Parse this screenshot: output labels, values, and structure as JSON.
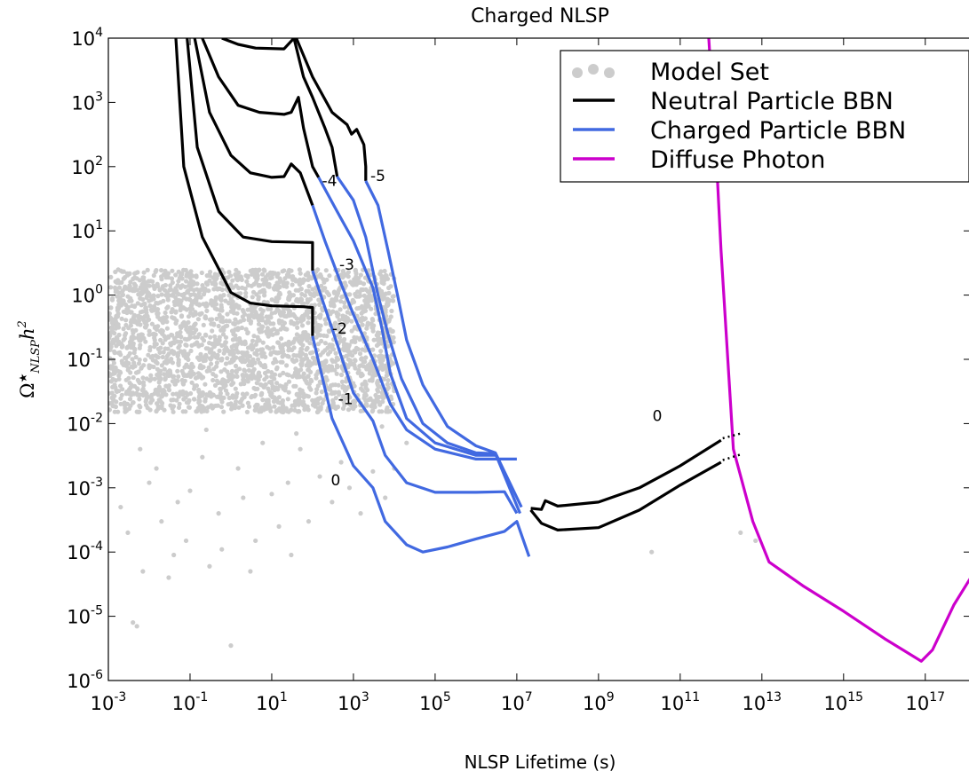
{
  "chart_data": {
    "type": "line",
    "title": "Charged NLSP",
    "xlabel": "NLSP Lifetime (s)",
    "ylabel": "Ω★NLSP h2",
    "ylabel_parts": {
      "omega": "Ω",
      "star": "★",
      "sub": "NLSP",
      "h": "h",
      "sup": "2"
    },
    "x_scale": "log",
    "y_scale": "log",
    "xlim": [
      0.001,
      1.3e+18
    ],
    "ylim": [
      1e-06,
      10000.0
    ],
    "x_ticks": [
      {
        "base": "10",
        "exp": "-3",
        "value": 0.001
      },
      {
        "base": "10",
        "exp": "-1",
        "value": 0.1
      },
      {
        "base": "10",
        "exp": "1",
        "value": 10
      },
      {
        "base": "10",
        "exp": "3",
        "value": 1000
      },
      {
        "base": "10",
        "exp": "5",
        "value": 100000.0
      },
      {
        "base": "10",
        "exp": "7",
        "value": 10000000.0
      },
      {
        "base": "10",
        "exp": "9",
        "value": 1000000000.0
      },
      {
        "base": "10",
        "exp": "11",
        "value": 100000000000.0
      },
      {
        "base": "10",
        "exp": "13",
        "value": 10000000000000.0
      },
      {
        "base": "10",
        "exp": "15",
        "value": 1000000000000000.0
      },
      {
        "base": "10",
        "exp": "17",
        "value": 1e+17
      }
    ],
    "y_ticks": [
      {
        "base": "10",
        "exp": "-6",
        "value": 1e-06
      },
      {
        "base": "10",
        "exp": "-5",
        "value": 1e-05
      },
      {
        "base": "10",
        "exp": "-4",
        "value": 0.0001
      },
      {
        "base": "10",
        "exp": "-3",
        "value": 0.001
      },
      {
        "base": "10",
        "exp": "-2",
        "value": 0.01
      },
      {
        "base": "10",
        "exp": "-1",
        "value": 0.1
      },
      {
        "base": "10",
        "exp": "0",
        "value": 1
      },
      {
        "base": "10",
        "exp": "1",
        "value": 10
      },
      {
        "base": "10",
        "exp": "2",
        "value": 100
      },
      {
        "base": "10",
        "exp": "3",
        "value": 1000
      },
      {
        "base": "10",
        "exp": "4",
        "value": 10000
      }
    ],
    "grid": false,
    "legend": {
      "position": "top-right",
      "entries": [
        {
          "label": "Model Set",
          "color": "#cccccc",
          "style": "dots"
        },
        {
          "label": "Neutral Particle BBN",
          "color": "#000000",
          "style": "line"
        },
        {
          "label": "Charged Particle BBN",
          "color": "#4169e1",
          "style": "line"
        },
        {
          "label": "Diffuse Photon",
          "color": "#cc00cc",
          "style": "line"
        }
      ]
    },
    "scatter_cloud": {
      "color": "#cccccc",
      "dense_region": {
        "x_range": [
          0.001,
          10000
        ],
        "y_range": [
          0.015,
          2.5
        ]
      },
      "sparse_points": [
        [
          0.002,
          0.0005
        ],
        [
          0.003,
          0.0002
        ],
        [
          0.004,
          8e-06
        ],
        [
          0.005,
          7e-06
        ],
        [
          0.007,
          5e-05
        ],
        [
          0.01,
          0.0012
        ],
        [
          0.02,
          0.0003
        ],
        [
          0.03,
          4e-05
        ],
        [
          0.05,
          0.0006
        ],
        [
          0.08,
          0.00015
        ],
        [
          0.1,
          0.0009
        ],
        [
          0.2,
          0.003
        ],
        [
          0.3,
          6e-05
        ],
        [
          0.5,
          0.0004
        ],
        [
          1,
          3.5e-06
        ],
        [
          1.5,
          0.002
        ],
        [
          2,
          0.0007
        ],
        [
          4,
          0.00015
        ],
        [
          6,
          0.005
        ],
        [
          10,
          0.0008
        ],
        [
          15,
          0.00025
        ],
        [
          25,
          0.0012
        ],
        [
          50,
          0.004
        ],
        [
          80,
          0.0003
        ],
        [
          150,
          0.0015
        ],
        [
          300,
          0.0006
        ],
        [
          500,
          0.0025
        ],
        [
          800,
          0.001
        ],
        [
          1500,
          0.0004
        ],
        [
          3000,
          0.0018
        ],
        [
          6000,
          0.0007
        ],
        [
          0.015,
          0.002
        ],
        [
          0.04,
          9e-05
        ],
        [
          0.6,
          0.00011
        ],
        [
          3,
          5e-05
        ],
        [
          30,
          9e-05
        ],
        [
          20000000000.0,
          0.0001
        ],
        [
          3000000000000.0,
          0.0002
        ],
        [
          7000000000000.0,
          0.00015
        ],
        [
          10000.0,
          0.002
        ],
        [
          20000.0,
          0.005
        ],
        [
          5000.0,
          0.009
        ],
        [
          0.25,
          0.008
        ],
        [
          40,
          0.007
        ],
        [
          0.006,
          0.004
        ]
      ]
    },
    "series": [
      {
        "color": "#000000",
        "points": [
          [
            0.045,
            10000.0
          ],
          [
            0.07,
            100
          ],
          [
            0.2,
            8
          ],
          [
            1,
            1.1
          ],
          [
            3,
            0.75
          ],
          [
            10,
            0.68
          ],
          [
            60,
            0.66
          ],
          [
            100,
            0.64
          ],
          [
            100,
            0.23
          ]
        ]
      },
      {
        "color": "#000000",
        "points": [
          [
            0.085,
            10000.0
          ],
          [
            0.15,
            200
          ],
          [
            0.5,
            20
          ],
          [
            2,
            8
          ],
          [
            10,
            6.8
          ],
          [
            100,
            6.6
          ],
          [
            100,
            2.4
          ]
        ]
      },
      {
        "color": "#000000",
        "points": [
          [
            0.13,
            10000.0
          ],
          [
            0.3,
            700
          ],
          [
            1,
            150
          ],
          [
            3,
            80
          ],
          [
            10,
            68
          ],
          [
            20,
            70
          ],
          [
            30,
            110
          ],
          [
            50,
            80
          ],
          [
            100,
            25
          ]
        ]
      },
      {
        "color": "#000000",
        "points": [
          [
            0.2,
            10000.0
          ],
          [
            0.5,
            2500
          ],
          [
            1.5,
            900
          ],
          [
            5,
            700
          ],
          [
            20,
            650
          ],
          [
            30,
            700
          ],
          [
            45,
            1200
          ],
          [
            60,
            400
          ],
          [
            100,
            100
          ],
          [
            140,
            68
          ]
        ]
      },
      {
        "color": "#000000",
        "points": [
          [
            0.6,
            10000.0
          ],
          [
            1.5,
            8000
          ],
          [
            4,
            7000
          ],
          [
            20,
            6800
          ],
          [
            35,
            10000.0
          ],
          [
            60,
            2500
          ],
          [
            100,
            1200
          ],
          [
            200,
            400
          ],
          [
            300,
            200
          ],
          [
            400,
            70
          ]
        ]
      },
      {
        "color": "#000000",
        "points": [
          [
            40,
            10000.0
          ],
          [
            100,
            2500
          ],
          [
            300,
            700
          ],
          [
            700,
            450
          ],
          [
            900,
            320
          ],
          [
            1200,
            380
          ],
          [
            1800,
            220
          ],
          [
            2000,
            100
          ],
          [
            2000,
            60
          ]
        ]
      },
      {
        "color": "#000000",
        "points": [
          [
            22000000.0,
            0.00048
          ],
          [
            40000000.0,
            0.00046
          ],
          [
            50000000.0,
            0.00063
          ],
          [
            100000000.0,
            0.00052
          ],
          [
            1000000000.0,
            0.0006
          ],
          [
            10000000000.0,
            0.001
          ],
          [
            100000000000.0,
            0.0022
          ],
          [
            1000000000000.0,
            0.0055
          ]
        ]
      },
      {
        "color": "#000000",
        "points": [
          [
            22000000.0,
            0.00045
          ],
          [
            40000000.0,
            0.00028
          ],
          [
            100000000.0,
            0.00022
          ],
          [
            1000000000.0,
            0.00024
          ],
          [
            10000000000.0,
            0.00045
          ],
          [
            100000000000.0,
            0.0011
          ],
          [
            1000000000000.0,
            0.0025
          ]
        ]
      },
      {
        "color": "#4169e1",
        "points": [
          [
            100,
            0.23
          ],
          [
            300,
            0.012
          ],
          [
            1000,
            0.0022
          ],
          [
            3000,
            0.001
          ],
          [
            6000,
            0.0003
          ],
          [
            20000.0,
            0.00013
          ],
          [
            50000.0,
            0.0001
          ],
          [
            200000.0,
            0.00012
          ],
          [
            1000000.0,
            0.00016
          ],
          [
            5000000.0,
            0.00021
          ],
          [
            10000000.0,
            0.0003
          ],
          [
            20000000.0,
            8.5e-05
          ]
        ]
      },
      {
        "color": "#4169e1",
        "points": [
          [
            100,
            2.4
          ],
          [
            300,
            0.3
          ],
          [
            1000,
            0.03
          ],
          [
            3000,
            0.011
          ],
          [
            6000,
            0.0032
          ],
          [
            20000.0,
            0.0012
          ],
          [
            100000.0,
            0.00085
          ],
          [
            1000000.0,
            0.00085
          ],
          [
            5000000.0,
            0.00087
          ],
          [
            10000000.0,
            0.0004
          ]
        ]
      },
      {
        "color": "#4169e1",
        "points": [
          [
            100,
            25
          ],
          [
            200,
            7
          ],
          [
            500,
            1.5
          ],
          [
            1000,
            0.5
          ],
          [
            3000,
            0.1
          ],
          [
            8000,
            0.02
          ],
          [
            20000.0,
            0.008
          ],
          [
            100000.0,
            0.004
          ],
          [
            1000000.0,
            0.0028
          ],
          [
            10000000.0,
            0.0028
          ]
        ]
      },
      {
        "color": "#4169e1",
        "points": [
          [
            140,
            68
          ],
          [
            400,
            20
          ],
          [
            1000,
            7
          ],
          [
            3000,
            1.3
          ],
          [
            5000,
            0.3
          ],
          [
            8000,
            0.06
          ],
          [
            20000.0,
            0.012
          ],
          [
            100000.0,
            0.005
          ],
          [
            1000000.0,
            0.0032
          ],
          [
            3000000.0,
            0.0032
          ]
        ]
      },
      {
        "color": "#4169e1",
        "points": [
          [
            400,
            70
          ],
          [
            1000,
            30
          ],
          [
            2000,
            8
          ],
          [
            4000,
            1
          ],
          [
            7000,
            0.25
          ],
          [
            15000.0,
            0.05
          ],
          [
            50000.0,
            0.01
          ],
          [
            200000.0,
            0.005
          ],
          [
            1000000.0,
            0.0035
          ],
          [
            3000000.0,
            0.0034
          ],
          [
            12000000.0,
            0.0004
          ]
        ]
      },
      {
        "color": "#4169e1",
        "points": [
          [
            2000,
            60
          ],
          [
            4000,
            25
          ],
          [
            7000,
            5
          ],
          [
            12000.0,
            1
          ],
          [
            20000.0,
            0.2
          ],
          [
            50000.0,
            0.04
          ],
          [
            200000.0,
            0.009
          ],
          [
            1000000.0,
            0.0045
          ],
          [
            3000000.0,
            0.0035
          ],
          [
            13000000.0,
            0.0005
          ]
        ]
      },
      {
        "color": "#cc00cc",
        "points": [
          [
            500000000000.0,
            10000.0
          ],
          [
            800000000000.0,
            80
          ],
          [
            1000000000000.0,
            5
          ],
          [
            2000000000000.0,
            0.004
          ],
          [
            6000000000000.0,
            0.0003
          ],
          [
            15000000000000.0,
            7e-05
          ],
          [
            100000000000000.0,
            3e-05
          ],
          [
            1000000000000000.0,
            1.2e-05
          ],
          [
            1e+16,
            4.5e-06
          ],
          [
            8e+16,
            2e-06
          ],
          [
            1.5e+17,
            3e-06
          ],
          [
            5e+17,
            1.5e-05
          ],
          [
            1.3e+18,
            4e-05
          ]
        ]
      }
    ],
    "dotted_extensions": [
      {
        "from": [
          1100000000000.0,
          0.0059
        ],
        "to": [
          3000000000000.0,
          0.007
        ],
        "color": "#000000"
      },
      {
        "from": [
          1100000000000.0,
          0.0027
        ],
        "to": [
          3000000000000.0,
          0.0033
        ],
        "color": "#000000"
      }
    ],
    "curve_labels": [
      {
        "text": "-5",
        "x": 2600,
        "y": 60
      },
      {
        "text": "-4",
        "x": 170,
        "y": 50
      },
      {
        "text": "-3",
        "x": 450,
        "y": 2.5
      },
      {
        "text": "-2",
        "x": 300,
        "y": 0.25
      },
      {
        "text": "-1",
        "x": 420,
        "y": 0.02
      },
      {
        "text": "0",
        "x": 280,
        "y": 0.0011
      },
      {
        "text": "0",
        "x": 21000000000.0,
        "y": 0.011
      }
    ]
  }
}
